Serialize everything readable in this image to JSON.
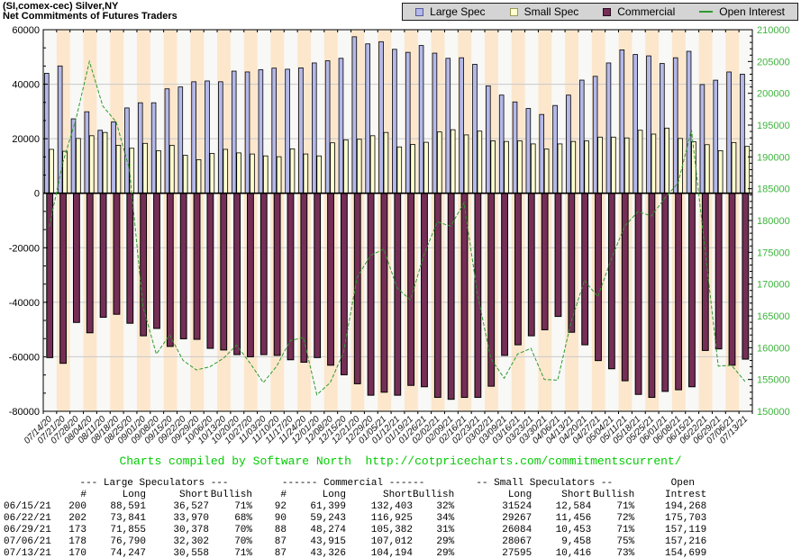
{
  "title": {
    "line1": "(SI,comex-cec) Silver,NY",
    "line2": "Net Commitments of Futures Traders"
  },
  "legend": {
    "items": [
      {
        "label": "Large Spec",
        "type": "square",
        "color": "#b4b8e8",
        "border": "#5a5a9a"
      },
      {
        "label": "Small Spec",
        "type": "square",
        "color": "#ffffcf",
        "border": "#9a9a5a"
      },
      {
        "label": "Commercial",
        "type": "square",
        "color": "#752e56",
        "border": "#2a0a1e"
      },
      {
        "label": "Open Interest",
        "type": "line",
        "color": "#2e9b2e",
        "border": "#2e9b2e"
      }
    ]
  },
  "colors": {
    "large_spec": "#b4b8e8",
    "small_spec": "#ffffcf",
    "commercial": "#752e56",
    "open_interest_line": "#2e9b2e",
    "right_axis_text": "#3cb53c",
    "left_axis_text": "#000000",
    "stripe_light": "#f8f8f6",
    "stripe_peach": "#fce7cd",
    "grid": "#c9c9c9",
    "zero_line": "#000000",
    "plot_border": "#000000",
    "footer_green": "#00cc00",
    "legend_bg": "#d4d4d4"
  },
  "chart_data": {
    "type": "bar",
    "title": "Net Commitments of Futures Traders",
    "xlabel": "",
    "ylabel_left": "",
    "ylabel_right": "",
    "left_axis": {
      "min": -80000,
      "max": 60000,
      "major_tick": 20000,
      "minor_per_major": 3
    },
    "right_axis": {
      "min": 150000,
      "max": 210000,
      "major_tick": 5000,
      "minor_per_major": 5
    },
    "grid": "horizontal-major",
    "legend_position": "top-right",
    "categories": [
      "07/14/20",
      "07/21/20",
      "07/28/20",
      "08/04/20",
      "08/11/20",
      "08/18/20",
      "08/25/20",
      "09/01/20",
      "09/08/20",
      "09/15/20",
      "09/22/20",
      "09/29/20",
      "10/06/20",
      "10/13/20",
      "10/20/20",
      "10/27/20",
      "11/03/20",
      "11/10/20",
      "11/17/20",
      "11/24/20",
      "12/01/20",
      "12/08/20",
      "12/15/20",
      "12/21/20",
      "12/29/20",
      "01/05/21",
      "01/12/21",
      "01/19/21",
      "01/26/21",
      "02/02/21",
      "02/09/21",
      "02/16/21",
      "02/23/21",
      "03/02/21",
      "03/09/21",
      "03/16/21",
      "03/23/21",
      "03/30/21",
      "04/06/21",
      "04/13/21",
      "04/20/21",
      "04/27/21",
      "05/04/21",
      "05/11/21",
      "05/18/21",
      "05/25/21",
      "06/01/21",
      "06/08/21",
      "06/15/21",
      "06/22/21",
      "06/29/21",
      "07/06/21",
      "07/13/21"
    ],
    "series": [
      {
        "name": "Large Spec",
        "type": "bar",
        "axis": "left",
        "values": [
          44000,
          46700,
          27300,
          29900,
          23100,
          26200,
          31300,
          33200,
          33200,
          38300,
          39000,
          40900,
          41200,
          40900,
          44800,
          44500,
          45300,
          45900,
          45500,
          46000,
          47800,
          48600,
          49500,
          57400,
          54800,
          55600,
          52800,
          51700,
          54200,
          51400,
          49500,
          49700,
          47300,
          39400,
          36000,
          33500,
          31100,
          28900,
          32200,
          36000,
          41500,
          42900,
          47800,
          52600,
          50900,
          50400,
          47600,
          49700,
          52064,
          39871,
          41477,
          44488,
          43689
        ]
      },
      {
        "name": "Small Spec",
        "type": "bar",
        "axis": "left",
        "values": [
          16100,
          15400,
          20100,
          21100,
          22300,
          17600,
          16500,
          18300,
          15600,
          17600,
          13900,
          12300,
          14600,
          16100,
          14800,
          14400,
          13700,
          13400,
          16300,
          14400,
          13700,
          18500,
          19600,
          19800,
          21100,
          22300,
          17000,
          17900,
          18700,
          22500,
          23300,
          21400,
          22800,
          19200,
          19000,
          19200,
          18100,
          16200,
          18100,
          19000,
          19200,
          20600,
          20600,
          20300,
          23100,
          21700,
          23900,
          20100,
          18940,
          17811,
          15631,
          18609,
          17179
        ]
      },
      {
        "name": "Commercial",
        "type": "bar",
        "axis": "left",
        "values": [
          -60300,
          -62400,
          -47400,
          -51200,
          -45500,
          -44400,
          -47700,
          -52300,
          -49600,
          -56200,
          -53400,
          -53600,
          -56900,
          -57500,
          -59200,
          -60000,
          -59200,
          -59500,
          -61100,
          -62000,
          -60300,
          -63100,
          -66600,
          -69900,
          -74100,
          -73000,
          -74100,
          -70500,
          -71000,
          -74900,
          -75600,
          -74900,
          -74900,
          -70800,
          -59500,
          -55600,
          -52300,
          -50100,
          -45200,
          -51000,
          -55600,
          -61400,
          -64400,
          -68800,
          -73800,
          -74900,
          -72700,
          -72100,
          -71004,
          -57682,
          -57108,
          -63097,
          -60868
        ]
      },
      {
        "name": "Open Interest",
        "type": "line",
        "axis": "right",
        "values": [
          179000,
          189000,
          196000,
          205000,
          198000,
          195500,
          188000,
          166500,
          159000,
          162000,
          158000,
          156500,
          157000,
          158300,
          160400,
          157600,
          154500,
          157100,
          161100,
          161600,
          152600,
          154500,
          159300,
          171000,
          174500,
          175500,
          169400,
          167500,
          174600,
          179800,
          179100,
          182800,
          168500,
          158300,
          155200,
          159000,
          159900,
          155000,
          154900,
          164000,
          170600,
          168000,
          173900,
          179100,
          181400,
          180700,
          183500,
          185900,
          194268,
          175703,
          157119,
          157216,
          154699
        ]
      }
    ]
  },
  "footer": {
    "credit": "Charts compiled by Software North  http://cotpricecharts.com/commitmentscurrent/"
  },
  "table": {
    "group_headers": [
      "--- Large Speculators ---",
      "------ Commercial ------",
      "-- Small Speculators --",
      "Open"
    ],
    "col_headers": [
      "",
      "#",
      "Long",
      "Short",
      "Bullish",
      "#",
      "Long",
      "Short",
      "Bullish",
      "Long",
      "Short",
      "Bullish",
      "Intrest"
    ],
    "rows": [
      [
        "06/15/21",
        "200",
        "88,591",
        "36,527",
        "71%",
        "92",
        "61,399",
        "132,403",
        "32%",
        "31524",
        "12,584",
        "71%",
        "194,268"
      ],
      [
        "06/22/21",
        "202",
        "73,841",
        "33,970",
        "68%",
        "90",
        "59,243",
        "116,925",
        "34%",
        "29267",
        "11,456",
        "72%",
        "175,703"
      ],
      [
        "06/29/21",
        "173",
        "71,855",
        "30,378",
        "70%",
        "88",
        "48,274",
        "105,382",
        "31%",
        "26084",
        "10,453",
        "71%",
        "157,119"
      ],
      [
        "07/06/21",
        "178",
        "76,790",
        "32,302",
        "70%",
        "87",
        "43,915",
        "107,012",
        "29%",
        "28067",
        "9,458",
        "75%",
        "157,216"
      ],
      [
        "07/13/21",
        "170",
        "74,247",
        "30,558",
        "71%",
        "87",
        "43,326",
        "104,194",
        "29%",
        "27595",
        "10,416",
        "73%",
        "154,699"
      ]
    ]
  }
}
